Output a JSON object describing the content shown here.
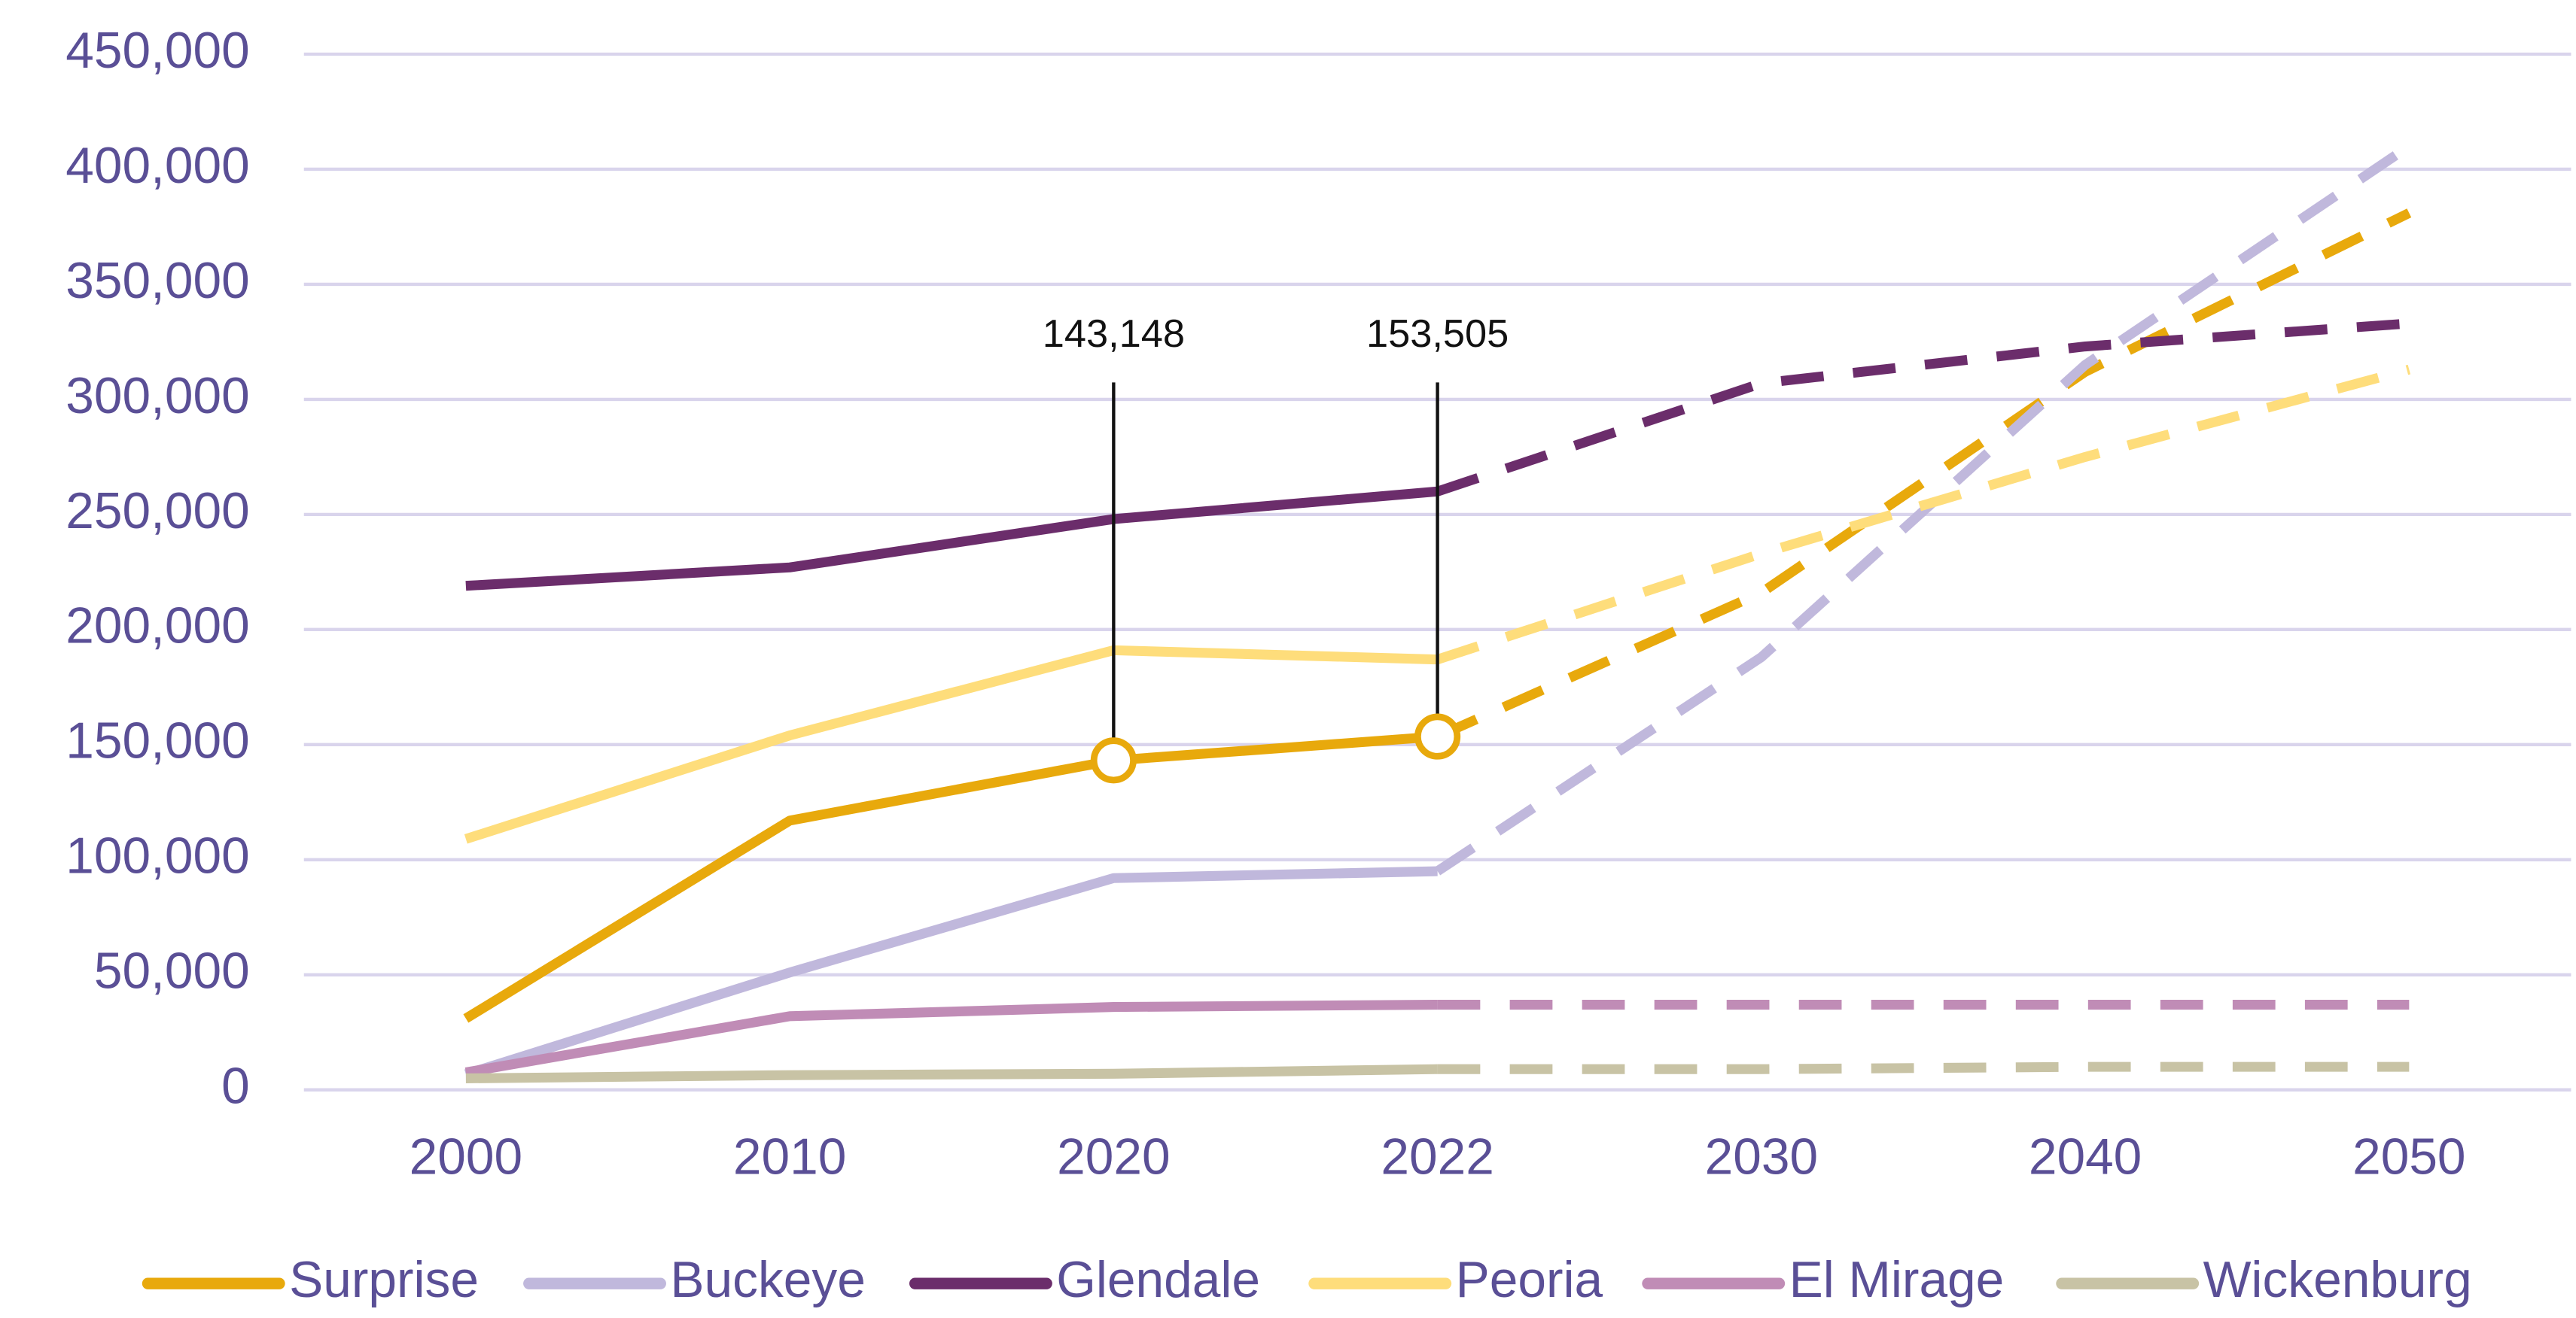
{
  "chart_data": {
    "type": "line",
    "categories": [
      "2000",
      "2010",
      "2020",
      "2022",
      "2030",
      "2040",
      "2050"
    ],
    "dashed_from": "2022",
    "series": [
      {
        "name": "Surprise",
        "color": "#e8a90c",
        "values": [
          31000,
          117000,
          143148,
          153505,
          216000,
          312000,
          381000
        ],
        "value_labels": [
          null,
          null,
          "143,148",
          "153,505",
          null,
          null,
          null
        ]
      },
      {
        "name": "Buckeye",
        "color": "#c0b8dc",
        "values": [
          6800,
          51000,
          92000,
          95000,
          188000,
          315000,
          410000
        ]
      },
      {
        "name": "Glendale",
        "color": "#6b2d6b",
        "values": [
          219000,
          227000,
          248000,
          260000,
          307000,
          323000,
          333000
        ]
      },
      {
        "name": "Peoria",
        "color": "#fedd7b",
        "values": [
          109000,
          154000,
          191000,
          187000,
          233000,
          275000,
          313000
        ]
      },
      {
        "name": "El Mirage",
        "color": "#c08cb6",
        "values": [
          7600,
          32000,
          36000,
          37000,
          37000,
          37000,
          37000
        ]
      },
      {
        "name": "Wickenburg",
        "color": "#c8c3a5",
        "values": [
          5000,
          6400,
          7000,
          9000,
          9000,
          10000,
          10000
        ]
      }
    ],
    "ylim": [
      0,
      450000
    ],
    "yticks": [
      0,
      {
        "value": 50000,
        "label": "50,000"
      },
      {
        "value": 100000,
        "label": "100,000"
      },
      {
        "value": 150000,
        "label": "150,000"
      },
      {
        "value": 200000,
        "label": "200,000"
      },
      {
        "value": 250000,
        "label": "250,000"
      },
      {
        "value": 300000,
        "label": "300,000"
      },
      {
        "value": 350000,
        "label": "350,000"
      },
      {
        "value": 400000,
        "label": "400,000"
      },
      {
        "value": 450000,
        "label": "450,000"
      }
    ],
    "grid": true,
    "legend": "bottom"
  }
}
